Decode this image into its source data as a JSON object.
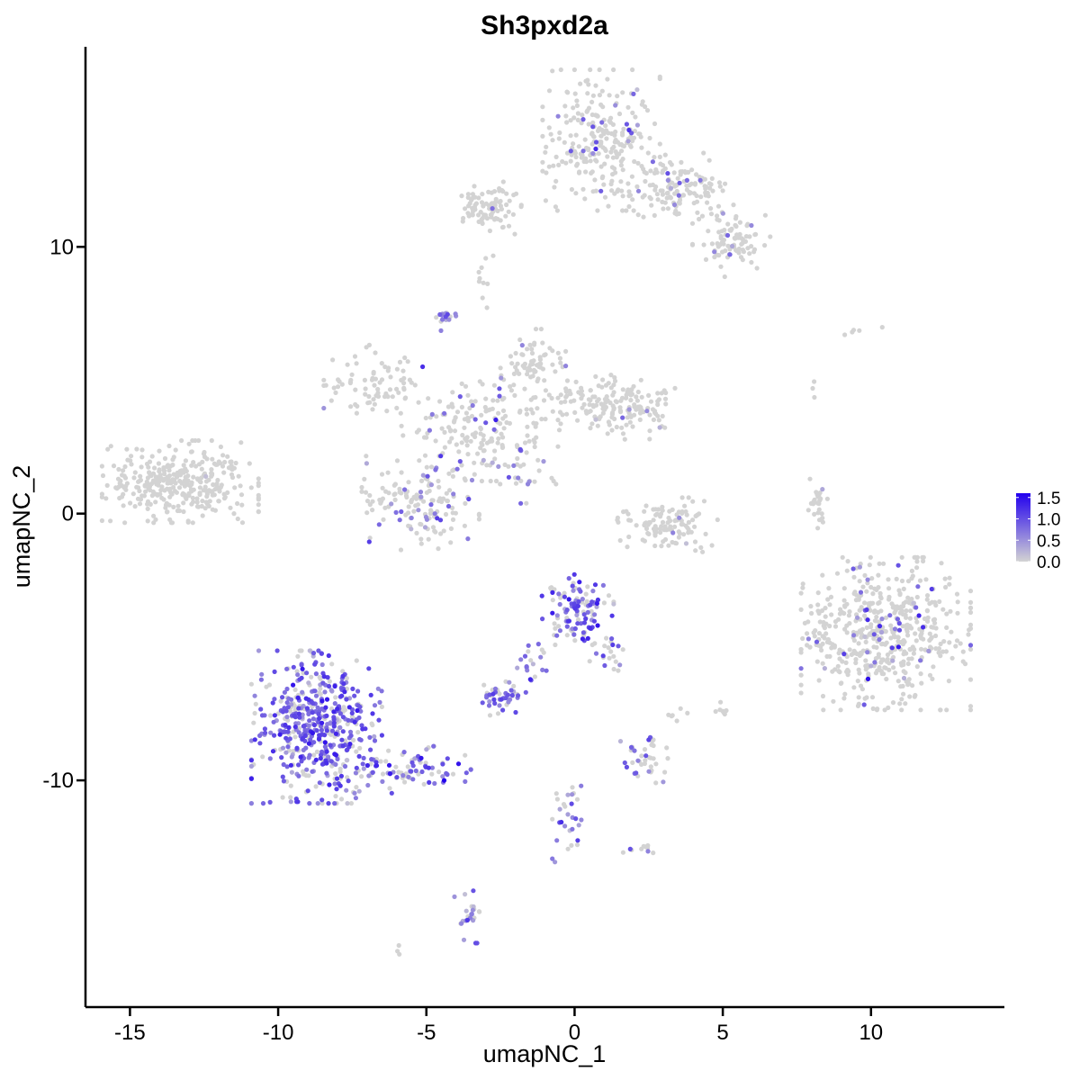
{
  "chart_data": {
    "type": "scatter",
    "title": "Sh3pxd2a",
    "xlabel": "umapNC_1",
    "ylabel": "umapNC_2",
    "xlim": [
      -16.5,
      14.5
    ],
    "ylim": [
      -18.5,
      17.5
    ],
    "x_ticks": [
      -15,
      -10,
      -5,
      0,
      5,
      10
    ],
    "x_tick_labels": [
      "-15",
      "-10",
      "-5",
      "0",
      "5",
      "10"
    ],
    "y_ticks": [
      -10,
      0,
      10
    ],
    "y_tick_labels": [
      "-10",
      "0",
      "10"
    ],
    "grid": false,
    "legend_position": "right",
    "color_scale": {
      "low": "#d3d3d3",
      "high": "#2200ee",
      "min": 0.0,
      "max": 1.6,
      "labels": [
        {
          "value": 1.5,
          "text": "1.5"
        },
        {
          "value": 1.0,
          "text": "1.0"
        },
        {
          "value": 0.5,
          "text": "0.5"
        },
        {
          "value": 0.0,
          "text": "0.0"
        }
      ]
    },
    "clusters": [
      {
        "cx": -13.3,
        "cy": 1.2,
        "sx": 1.2,
        "sy": 0.7,
        "n": 340,
        "expr_frac": 0.02,
        "expr_mean": 0.4
      },
      {
        "cx": 0.9,
        "cy": 14.0,
        "sx": 0.9,
        "sy": 1.2,
        "n": 260,
        "expr_frac": 0.08,
        "expr_mean": 0.7
      },
      {
        "cx": 3.6,
        "cy": 12.2,
        "sx": 0.8,
        "sy": 0.6,
        "n": 140,
        "expr_frac": 0.07,
        "expr_mean": 0.7
      },
      {
        "cx": 5.3,
        "cy": 10.2,
        "sx": 0.6,
        "sy": 0.6,
        "n": 90,
        "expr_frac": 0.06,
        "expr_mean": 0.6
      },
      {
        "cx": -2.8,
        "cy": 11.5,
        "sx": 0.5,
        "sy": 0.5,
        "n": 90,
        "expr_frac": 0.01,
        "expr_mean": 0.4
      },
      {
        "cx": -2.9,
        "cy": 8.8,
        "sx": 0.15,
        "sy": 0.5,
        "n": 10,
        "expr_frac": 0.0,
        "expr_mean": 0.4
      },
      {
        "cx": -4.4,
        "cy": 7.3,
        "sx": 0.2,
        "sy": 0.2,
        "n": 16,
        "expr_frac": 0.8,
        "expr_mean": 0.6
      },
      {
        "cx": -6.7,
        "cy": 5.0,
        "sx": 0.8,
        "sy": 0.6,
        "n": 80,
        "expr_frac": 0.08,
        "expr_mean": 0.6
      },
      {
        "cx": -1.4,
        "cy": 5.6,
        "sx": 0.5,
        "sy": 0.6,
        "n": 70,
        "expr_frac": 0.04,
        "expr_mean": 0.6
      },
      {
        "cx": -3.2,
        "cy": 3.2,
        "sx": 1.2,
        "sy": 0.9,
        "n": 170,
        "expr_frac": 0.12,
        "expr_mean": 0.7
      },
      {
        "cx": 0.6,
        "cy": 4.1,
        "sx": 1.0,
        "sy": 0.5,
        "n": 120,
        "expr_frac": 0.04,
        "expr_mean": 0.6
      },
      {
        "cx": 2.2,
        "cy": 3.8,
        "sx": 0.6,
        "sy": 0.5,
        "n": 60,
        "expr_frac": 0.02,
        "expr_mean": 0.5
      },
      {
        "cx": -5.2,
        "cy": 0.4,
        "sx": 0.9,
        "sy": 0.8,
        "n": 150,
        "expr_frac": 0.2,
        "expr_mean": 0.7
      },
      {
        "cx": -1.8,
        "cy": 1.5,
        "sx": 0.6,
        "sy": 0.6,
        "n": 25,
        "expr_frac": 0.3,
        "expr_mean": 0.7
      },
      {
        "cx": 3.2,
        "cy": -0.5,
        "sx": 0.8,
        "sy": 0.5,
        "n": 110,
        "expr_frac": 0.02,
        "expr_mean": 0.5
      },
      {
        "cx": 8.2,
        "cy": 0.3,
        "sx": 0.15,
        "sy": 0.5,
        "n": 25,
        "expr_frac": 0.1,
        "expr_mean": 0.6
      },
      {
        "cx": 10.5,
        "cy": -4.5,
        "sx": 1.3,
        "sy": 1.3,
        "n": 520,
        "expr_frac": 0.12,
        "expr_mean": 0.8
      },
      {
        "cx": 8.3,
        "cy": -4.7,
        "sx": 0.25,
        "sy": 0.5,
        "n": 20,
        "expr_frac": 0.15,
        "expr_mean": 0.6
      },
      {
        "cx": -8.7,
        "cy": -8.0,
        "sx": 1.0,
        "sy": 1.3,
        "n": 520,
        "expr_frac": 0.7,
        "expr_mean": 0.9
      },
      {
        "cx": -5.7,
        "cy": -9.6,
        "sx": 1.0,
        "sy": 0.4,
        "n": 90,
        "expr_frac": 0.6,
        "expr_mean": 0.8
      },
      {
        "cx": 0.0,
        "cy": -3.6,
        "sx": 0.6,
        "sy": 0.6,
        "n": 120,
        "expr_frac": 0.65,
        "expr_mean": 0.9
      },
      {
        "cx": -1.5,
        "cy": -5.6,
        "sx": 0.3,
        "sy": 0.5,
        "n": 20,
        "expr_frac": 0.7,
        "expr_mean": 0.8
      },
      {
        "cx": 1.2,
        "cy": -5.3,
        "sx": 0.35,
        "sy": 0.3,
        "n": 20,
        "expr_frac": 0.5,
        "expr_mean": 0.7
      },
      {
        "cx": -2.5,
        "cy": -6.9,
        "sx": 0.4,
        "sy": 0.3,
        "n": 45,
        "expr_frac": 0.6,
        "expr_mean": 0.8
      },
      {
        "cx": 2.4,
        "cy": -9.2,
        "sx": 0.4,
        "sy": 0.45,
        "n": 40,
        "expr_frac": 0.45,
        "expr_mean": 0.7
      },
      {
        "cx": 5.0,
        "cy": -7.4,
        "sx": 0.12,
        "sy": 0.15,
        "n": 10,
        "expr_frac": 0.0,
        "expr_mean": 0.4
      },
      {
        "cx": 3.5,
        "cy": -7.5,
        "sx": 0.2,
        "sy": 0.2,
        "n": 6,
        "expr_frac": 0.0,
        "expr_mean": 0.4
      },
      {
        "cx": -0.2,
        "cy": -11.3,
        "sx": 0.25,
        "sy": 0.8,
        "n": 30,
        "expr_frac": 0.6,
        "expr_mean": 0.7
      },
      {
        "cx": 2.3,
        "cy": -12.5,
        "sx": 0.3,
        "sy": 0.15,
        "n": 10,
        "expr_frac": 0.4,
        "expr_mean": 0.6
      },
      {
        "cx": -3.5,
        "cy": -15.0,
        "sx": 0.25,
        "sy": 0.5,
        "n": 25,
        "expr_frac": 0.6,
        "expr_mean": 0.6
      },
      {
        "cx": -6.0,
        "cy": -16.3,
        "sx": 0.1,
        "sy": 0.1,
        "n": 3,
        "expr_frac": 0.0,
        "expr_mean": 0.4
      },
      {
        "cx": 9.5,
        "cy": 6.8,
        "sx": 0.4,
        "sy": 0.1,
        "n": 5,
        "expr_frac": 0.0,
        "expr_mean": 0.4
      },
      {
        "cx": 7.9,
        "cy": 4.8,
        "sx": 0.1,
        "sy": 0.2,
        "n": 3,
        "expr_frac": 0.0,
        "expr_mean": 0.4
      }
    ],
    "max_cells": [
      {
        "x": -4.4,
        "y": -10.0,
        "value": 1.6
      },
      {
        "x": 9.9,
        "y": -6.2,
        "value": 1.5
      }
    ]
  }
}
